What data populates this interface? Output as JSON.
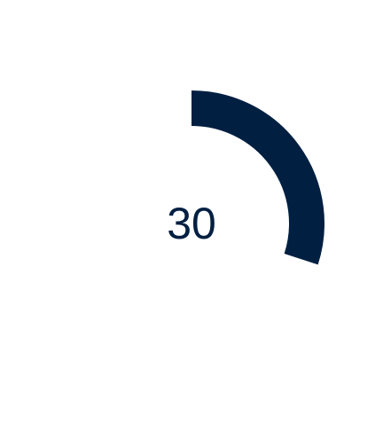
{
  "gauge": {
    "value": "30",
    "fraction": 0.3,
    "color": "#001f41"
  }
}
